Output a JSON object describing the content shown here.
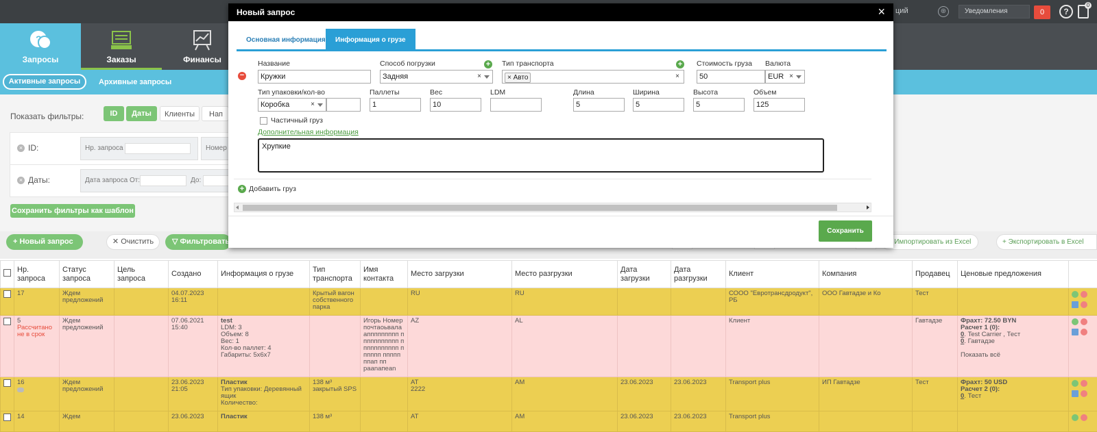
{
  "topbar": {
    "partial_text": "ций",
    "notifications_label": "Уведомления",
    "notifications_count": "0",
    "doc_badge": "0"
  },
  "nav": {
    "items": [
      {
        "label": "Запросы"
      },
      {
        "label": "Заказы"
      },
      {
        "label": "Финансы"
      }
    ]
  },
  "subnav": {
    "active": "Активные запросы",
    "archive": "Архивные запросы"
  },
  "filters": {
    "show_label": "Показать фильтры:",
    "tabs": [
      "ID",
      "Даты",
      "Клиенты",
      "Нап"
    ],
    "id_label": "ID:",
    "id_field": "Нр. запроса",
    "id_field2": "Номер",
    "dates_label": "Даты:",
    "date_from": "Дата запроса От:",
    "date_to": "До:",
    "save_template": "Сохранить фильтры как шаблон"
  },
  "actions": {
    "new_request": "Новый запрос",
    "clear": "Очистить",
    "filter": "Фильтровать",
    "import": "Импортировать из Excel",
    "export": "Экспортировать в Excel"
  },
  "table": {
    "headers": [
      "Нр. запроса",
      "Статус запроса",
      "Цель запроса",
      "Создано",
      "Информация о грузе",
      "Тип транспорта",
      "Имя контакта",
      "Место загрузки",
      "Место разгрузки",
      "Дата загрузки",
      "Дата разгрузки",
      "Клиент",
      "Компания",
      "Продавец",
      "Ценовые предложения"
    ],
    "rows": [
      {
        "id": "17",
        "status": "Ждем предложений",
        "created": "04.07.2023 16:11",
        "transport": "Крытый вагон собственного парка",
        "load": "RU",
        "unload": "RU",
        "client": "СООО \"Евротрансдродукт\", РБ",
        "company": "ООО Гавтадзе и Ко",
        "seller": "Тест"
      },
      {
        "id": "5",
        "late": "Рассчитано не в срок",
        "status": "Ждем предложений",
        "created": "07.06.2021 15:40",
        "cargo_title": "test",
        "cargo_lines": [
          "LDM: 3",
          "Объем: 8",
          "Вес: 1",
          "Кол-во паллет: 4",
          "Габариты: 5x6x7"
        ],
        "contact": "Игорь Номер почтаоьвала аппппппппп ппппппппппп ппппппппппп пппппп ппппп ппап пп",
        "contact_end": "paanaпean",
        "load": "AZ",
        "unload": "AL",
        "client": "Клиент",
        "seller": "Гавтадзе",
        "offer_freight": "Фрахт: 72.50 BYN",
        "offer_calc": "Расчет 1 (0):",
        "offer_n": "0",
        "offer_detail": ". Test Carrier , Тест",
        "offer_n2": "0",
        "offer_detail2": ". Гавтадзе",
        "offer_all": "Показать всё"
      },
      {
        "id": "16",
        "status": "Ждем предложений",
        "created": "23.06.2023 21:05",
        "cargo_title": "Пластик",
        "cargo_lines": [
          "Тип упаковки: Деревянный ящик",
          "Количество:"
        ],
        "transport": "138 м³ закрытый SPS",
        "load": "AT",
        "load2": "2222",
        "unload": "AM",
        "load_date": "23.06.2023",
        "unload_date": "23.06.2023",
        "client": "Transport plus",
        "company": "ИП Гавтадзе",
        "seller": "Тест",
        "offer_freight": "Фрахт: 50 USD",
        "offer_calc": "Расчет 2 (0):",
        "offer_n": "0",
        "offer_detail": ". Тест"
      },
      {
        "id": "14",
        "status": "Ждем",
        "created": "23.06.2023",
        "cargo_title": "Пластик",
        "transport": "138 м³",
        "load": "AT",
        "unload": "AM",
        "load_date": "23.06.2023",
        "unload_date": "23.06.2023",
        "client": "Transport plus"
      }
    ]
  },
  "modal": {
    "title": "Новый запрос",
    "tabs": [
      "Основная информация",
      "Информация о грузе"
    ],
    "labels": {
      "name": "Название",
      "loading": "Способ погрузки",
      "transport": "Тип транспорта",
      "cost": "Стоимость груза",
      "currency": "Валюта",
      "package": "Тип упаковки/кол-во",
      "pallets": "Паллеты",
      "weight": "Вес",
      "ldm": "LDM",
      "length": "Длина",
      "width": "Ширина",
      "height": "Высота",
      "volume": "Объем",
      "partial": "Частичный груз",
      "extra": "Дополнительная информация",
      "add_cargo": "Добавить груз",
      "save": "Сохранить"
    },
    "values": {
      "name": "Кружки",
      "loading": "Задняя",
      "transport_tag": "Авто",
      "cost": "50",
      "currency": "EUR",
      "package": "Коробка",
      "package_qty": "",
      "pallets": "1",
      "weight": "10",
      "ldm": "",
      "length": "5",
      "width": "5",
      "height": "5",
      "volume": "125",
      "extra_text": "Хрупкие"
    }
  }
}
